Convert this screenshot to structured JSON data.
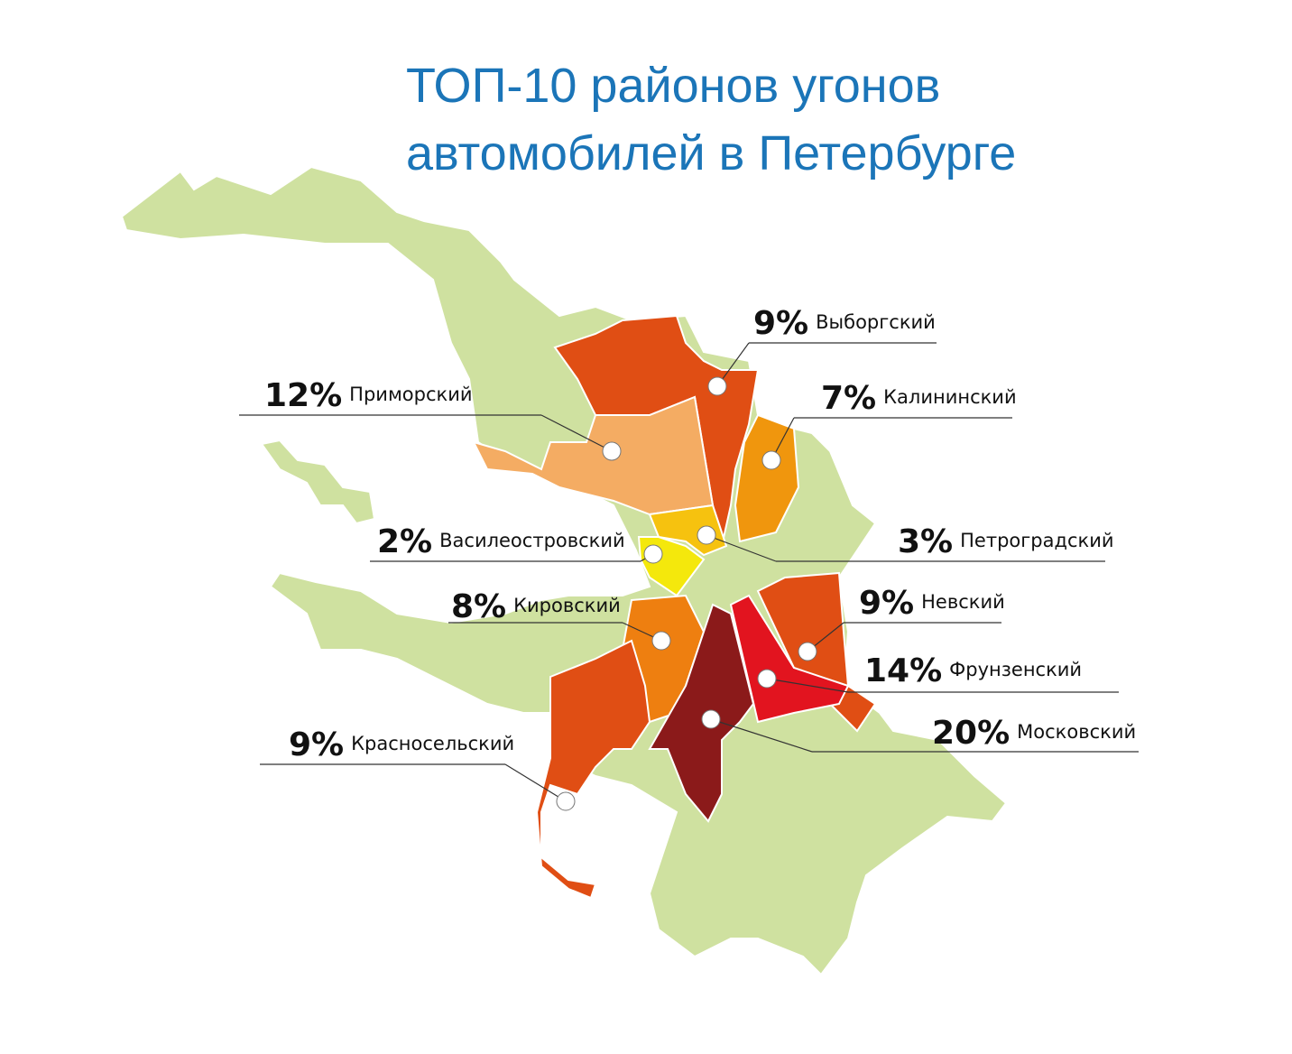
{
  "title": {
    "line1": "ТОП-10 районов угонов",
    "line2": "автомобилей в Петербурге"
  },
  "districts": [
    {
      "name": "Выборгский",
      "value": 9,
      "value_label": "9%",
      "color": "#e04e14"
    },
    {
      "name": "Калининский",
      "value": 7,
      "value_label": "7%",
      "color": "#f0960d"
    },
    {
      "name": "Приморский",
      "value": 12,
      "value_label": "12%",
      "color": "#f4ac63"
    },
    {
      "name": "Василеостровский",
      "value": 2,
      "value_label": "2%",
      "color": "#f4e80c"
    },
    {
      "name": "Петроградский",
      "value": 3,
      "value_label": "3%",
      "color": "#f6c20f"
    },
    {
      "name": "Кировский",
      "value": 8,
      "value_label": "8%",
      "color": "#ee7f10"
    },
    {
      "name": "Невский",
      "value": 9,
      "value_label": "9%",
      "color": "#e04e14"
    },
    {
      "name": "Фрунзенский",
      "value": 14,
      "value_label": "14%",
      "color": "#e2141f"
    },
    {
      "name": "Московский",
      "value": 20,
      "value_label": "20%",
      "color": "#8b1a1a"
    },
    {
      "name": "Красносельский",
      "value": 9,
      "value_label": "9%",
      "color": "#e04e14"
    }
  ]
}
